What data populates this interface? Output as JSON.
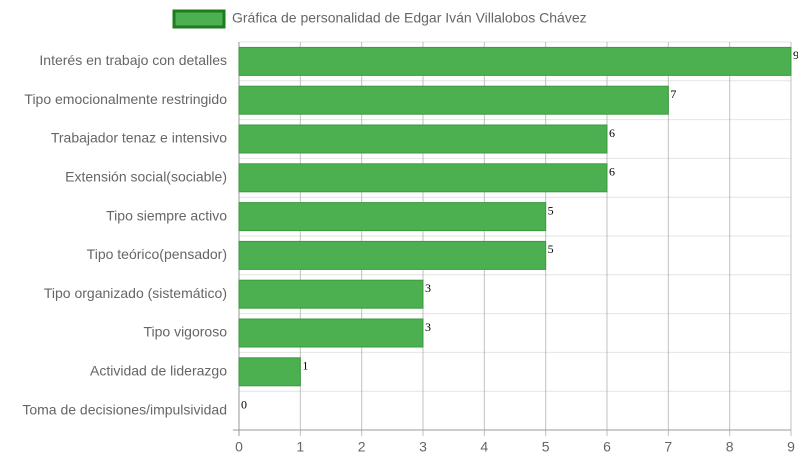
{
  "chart_data": {
    "type": "bar",
    "categories": [
      "Interés en trabajo con detalles",
      "Tipo emocionalmente restringido",
      "Trabajador tenaz e intensivo",
      "Extensión social(sociable)",
      "Tipo siempre activo",
      "Tipo teórico(pensador)",
      "Tipo organizado (sistemático)",
      "Tipo vigoroso",
      "Actividad de liderazgo",
      "Toma de decisiones/impulsividad"
    ],
    "series": [
      {
        "name": "Gráfica de personalidad de Edgar Iván Villalobos Chávez",
        "color": "#4caf50",
        "values": [
          9,
          7,
          6,
          6,
          5,
          5,
          3,
          3,
          1,
          0
        ]
      }
    ],
    "xlim": [
      0,
      9
    ],
    "xticks": [
      0,
      1,
      2,
      3,
      4,
      5,
      6,
      7,
      8,
      9
    ],
    "grid": true
  }
}
